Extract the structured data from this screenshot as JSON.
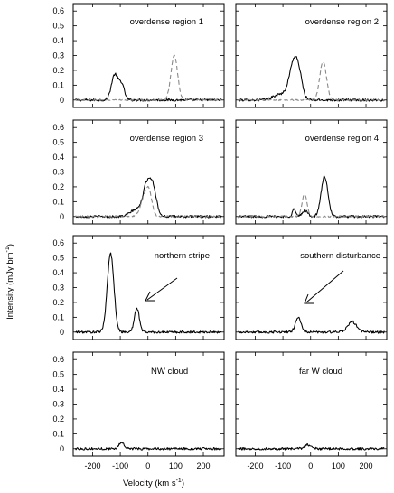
{
  "figure": {
    "ylabel_main": "Intensity (mJy bm",
    "ylabel_sup": "-1",
    "ylabel_tail": ")",
    "xlabel_main": "Velocity (km s",
    "xlabel_sup": "-1",
    "xlabel_tail": ")"
  },
  "axes": {
    "xlim": [
      -270,
      275
    ],
    "ylim": [
      -0.05,
      0.65
    ],
    "x_ticks": [
      -200,
      -100,
      0,
      100,
      200
    ],
    "x_tick_labels": [
      "-200",
      "-100",
      "0",
      "100",
      "200"
    ],
    "y_ticks": [
      0,
      0.1,
      0.2,
      0.3,
      0.4,
      0.5,
      0.6
    ],
    "y_tick_labels": [
      "0",
      "0.1",
      "0.2",
      "0.3",
      "0.4",
      "0.5",
      "0.6"
    ]
  },
  "chart_data": [
    {
      "type": "line",
      "label": "overdense region 1",
      "series": [
        {
          "style": "solid",
          "components": [
            [
              -120,
              0.17,
              12
            ],
            [
              -95,
              0.1,
              10
            ]
          ]
        },
        {
          "style": "dashed",
          "components": [
            [
              95,
              0.3,
              12
            ]
          ]
        }
      ]
    },
    {
      "type": "line",
      "label": "overdense region 2",
      "series": [
        {
          "style": "solid",
          "components": [
            [
              -105,
              0.04,
              28
            ],
            [
              -60,
              0.25,
              16
            ],
            [
              -40,
              0.1,
              12
            ]
          ]
        },
        {
          "style": "dashed",
          "components": [
            [
              45,
              0.26,
              12
            ]
          ]
        }
      ]
    },
    {
      "type": "line",
      "label": "overdense region 3",
      "series": [
        {
          "style": "solid",
          "components": [
            [
              -40,
              0.05,
              22
            ],
            [
              -8,
              0.15,
              12
            ],
            [
              15,
              0.22,
              14
            ]
          ]
        },
        {
          "style": "dashed",
          "components": [
            [
              -10,
              0.14,
              15
            ],
            [
              5,
              0.1,
              10
            ]
          ]
        }
      ]
    },
    {
      "type": "line",
      "label": "overdense region 4",
      "series": [
        {
          "style": "solid",
          "components": [
            [
              -60,
              0.05,
              6
            ],
            [
              -20,
              0.04,
              10
            ],
            [
              50,
              0.27,
              12
            ]
          ]
        },
        {
          "style": "dashed",
          "components": [
            [
              -22,
              0.15,
              9
            ]
          ]
        }
      ]
    },
    {
      "type": "line",
      "label": "northern stripe",
      "series": [
        {
          "style": "solid",
          "components": [
            [
              -135,
              0.53,
              12
            ],
            [
              -40,
              0.16,
              9
            ]
          ]
        }
      ]
    },
    {
      "type": "line",
      "label": "southern disturbance",
      "series": [
        {
          "style": "solid",
          "components": [
            [
              -45,
              0.1,
              10
            ],
            [
              150,
              0.07,
              16
            ]
          ]
        }
      ]
    },
    {
      "type": "line",
      "label": "NW cloud",
      "series": [
        {
          "style": "solid",
          "components": [
            [
              -95,
              0.04,
              10
            ]
          ]
        }
      ]
    },
    {
      "type": "line",
      "label": "far W cloud",
      "series": [
        {
          "style": "solid",
          "components": [
            [
              -10,
              0.025,
              12
            ]
          ]
        }
      ]
    }
  ]
}
